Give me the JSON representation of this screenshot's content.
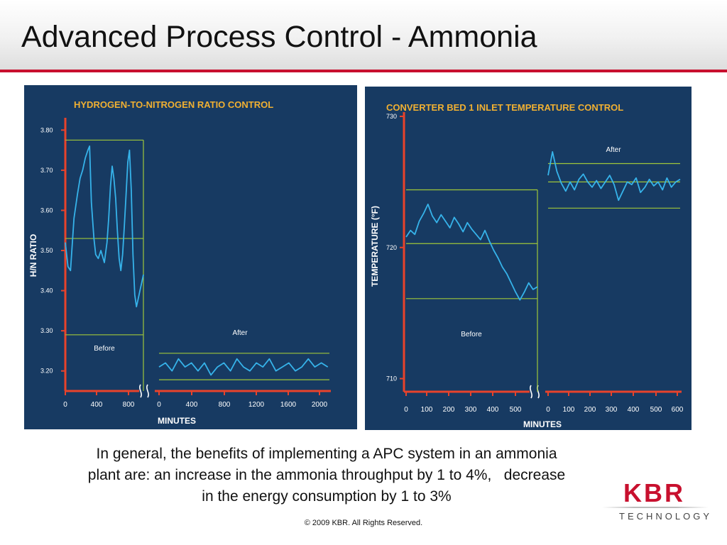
{
  "slide": {
    "title": "Advanced Process Control - Ammonia",
    "caption_line1": "In general, the benefits of implementing a APC system in an ammonia",
    "caption_line2": "plant are: an increase in the ammonia throughput by 1 to 4%,   decrease",
    "caption_line3": "in the energy consumption by 1 to 3%",
    "copyright": "© 2009 KBR. All Rights Reserved.",
    "logo_main": "KBR",
    "logo_sub": "TECHNOLOGY"
  },
  "colors": {
    "accent_red": "#c8102e",
    "panel_bg": "#173a62",
    "axis": "#e8432b",
    "trace": "#36b3ea",
    "limit_line": "#9fc63a",
    "title_text": "#f0b032",
    "label_text": "#ffffff"
  },
  "chart_data": [
    {
      "type": "line",
      "title": "HYDROGEN-TO-NITROGEN RATIO CONTROL",
      "ylabel": "H/N RATIO",
      "xlabel": "MINUTES",
      "ylim": [
        3.15,
        3.82
      ],
      "y_ticks": [
        "3.80",
        "3.70",
        "3.60",
        "3.50",
        "3.40",
        "3.30",
        "3.20"
      ],
      "x_ticks_before": [
        "0",
        "400",
        "800"
      ],
      "x_ticks_after": [
        "0",
        "400",
        "800",
        "1200",
        "1600",
        "2000"
      ],
      "grid": false,
      "series": [
        {
          "name": "Before",
          "x_range": [
            0,
            900
          ],
          "limits": [
            3.775,
            3.53,
            3.29
          ],
          "x": [
            0,
            30,
            60,
            100,
            140,
            170,
            200,
            230,
            260,
            280,
            300,
            330,
            350,
            380,
            410,
            450,
            480,
            500,
            520,
            540,
            560,
            580,
            600,
            620,
            640,
            660,
            680,
            700,
            720,
            740,
            760,
            780,
            800,
            820,
            840,
            860,
            880,
            900
          ],
          "values": [
            3.52,
            3.46,
            3.45,
            3.58,
            3.64,
            3.68,
            3.7,
            3.73,
            3.75,
            3.76,
            3.62,
            3.53,
            3.49,
            3.48,
            3.5,
            3.47,
            3.52,
            3.58,
            3.66,
            3.71,
            3.68,
            3.63,
            3.55,
            3.48,
            3.45,
            3.49,
            3.56,
            3.64,
            3.72,
            3.75,
            3.65,
            3.49,
            3.39,
            3.36,
            3.38,
            3.4,
            3.42,
            3.44
          ]
        },
        {
          "name": "After",
          "x_range": [
            0,
            2100
          ],
          "limits": [
            3.244,
            3.178
          ],
          "x": [
            0,
            80,
            160,
            240,
            320,
            400,
            480,
            560,
            640,
            720,
            800,
            880,
            960,
            1040,
            1120,
            1200,
            1280,
            1360,
            1440,
            1520,
            1600,
            1680,
            1760,
            1840,
            1920,
            2000,
            2080
          ],
          "values": [
            3.21,
            3.22,
            3.2,
            3.23,
            3.21,
            3.22,
            3.2,
            3.22,
            3.19,
            3.21,
            3.22,
            3.2,
            3.23,
            3.21,
            3.2,
            3.22,
            3.21,
            3.23,
            3.2,
            3.21,
            3.22,
            3.2,
            3.21,
            3.23,
            3.21,
            3.22,
            3.21
          ]
        }
      ]
    },
    {
      "type": "line",
      "title": "CONVERTER BED 1 INLET TEMPERATURE CONTROL",
      "ylabel": "TEMPERATURE (°F)",
      "xlabel": "MINUTES",
      "ylim": [
        709,
        730
      ],
      "y_ticks": [
        "730",
        "720",
        "710"
      ],
      "x_ticks_before": [
        "0",
        "100",
        "200",
        "300",
        "400",
        "500"
      ],
      "x_ticks_after": [
        "0",
        "100",
        "200",
        "300",
        "400",
        "500",
        "600"
      ],
      "grid": false,
      "series": [
        {
          "name": "Before",
          "x_range": [
            0,
            600
          ],
          "limits": [
            724.4,
            720.3,
            716.1
          ],
          "x": [
            0,
            20,
            40,
            60,
            80,
            100,
            120,
            140,
            160,
            180,
            200,
            220,
            240,
            260,
            280,
            300,
            320,
            340,
            360,
            380,
            400,
            420,
            440,
            460,
            480,
            500,
            520,
            540,
            560,
            580,
            600
          ],
          "values": [
            720.8,
            721.3,
            721.0,
            722.0,
            722.6,
            723.3,
            722.4,
            721.9,
            722.5,
            722.0,
            721.5,
            722.3,
            721.8,
            721.2,
            721.9,
            721.4,
            721.0,
            720.6,
            721.3,
            720.5,
            719.8,
            719.2,
            718.5,
            718.0,
            717.3,
            716.6,
            716.0,
            716.6,
            717.3,
            716.8,
            717.0
          ]
        },
        {
          "name": "After",
          "x_range": [
            0,
            600
          ],
          "limits": [
            726.4,
            725.0,
            723.0
          ],
          "x": [
            0,
            20,
            40,
            60,
            80,
            100,
            120,
            140,
            160,
            180,
            200,
            220,
            240,
            260,
            280,
            300,
            320,
            340,
            360,
            380,
            400,
            420,
            440,
            460,
            480,
            500,
            520,
            540,
            560,
            580,
            600
          ],
          "values": [
            725.5,
            727.3,
            725.8,
            724.9,
            724.3,
            725.0,
            724.4,
            725.2,
            725.6,
            725.0,
            724.6,
            725.1,
            724.5,
            725.0,
            725.5,
            724.8,
            723.6,
            724.3,
            725.0,
            724.8,
            725.3,
            724.2,
            724.6,
            725.2,
            724.7,
            725.0,
            724.4,
            725.3,
            724.6,
            725.0,
            725.2
          ]
        }
      ]
    }
  ]
}
